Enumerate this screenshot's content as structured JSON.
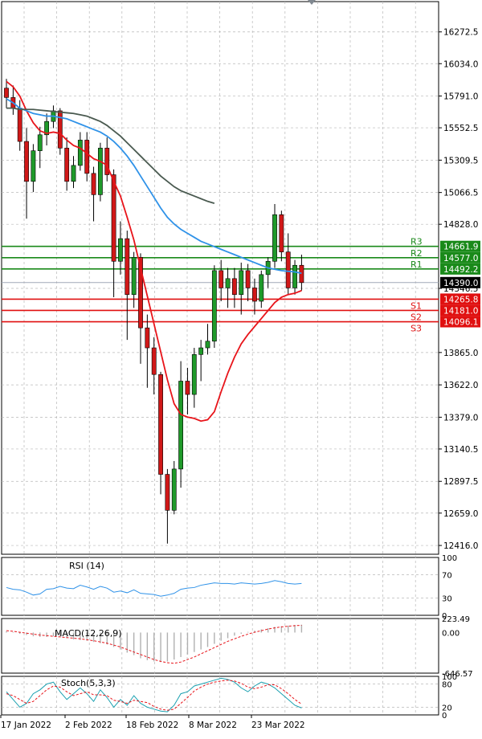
{
  "chart_data": {
    "type": "candlestick",
    "instrument_note": "",
    "x_labels": [
      "17 Jan 2022",
      "2 Feb 2022",
      "18 Feb 2022",
      "8 Mar 2022",
      "23 Mar 2022"
    ],
    "price_axis": {
      "ticks": [
        "16272.5",
        "16034.0",
        "15791.0",
        "15552.5",
        "15309.5",
        "15066.5",
        "14828.0",
        "14346.5",
        "13865.0",
        "13622.0",
        "13379.0",
        "13140.5",
        "12897.5",
        "12659.0",
        "12416.0"
      ],
      "tick_values": [
        16272.5,
        16034.0,
        15791.0,
        15552.5,
        15309.5,
        15066.5,
        14828.0,
        14346.5,
        13865.0,
        13622.0,
        13379.0,
        13140.5,
        12897.5,
        12659.0,
        12416.0
      ],
      "range": [
        12350,
        16500
      ]
    },
    "current_price": {
      "label": "14390.0",
      "value": 14390.0
    },
    "levels": [
      {
        "name": "R3",
        "label": "14661.9",
        "value": 14661.9,
        "kind": "resistance",
        "color": "#1a8a1a"
      },
      {
        "name": "R2",
        "label": "14577.0",
        "value": 14577.0,
        "kind": "resistance",
        "color": "#1a8a1a"
      },
      {
        "name": "R1",
        "label": "14492.2",
        "value": 14492.2,
        "kind": "resistance",
        "color": "#1a8a1a"
      },
      {
        "name": "S1",
        "label": "14265.8",
        "value": 14265.8,
        "kind": "support",
        "color": "#e01010"
      },
      {
        "name": "S2",
        "label": "14181.0",
        "value": 14181.0,
        "kind": "support",
        "color": "#e01010"
      },
      {
        "name": "S3",
        "label": "14096.1",
        "value": 14096.1,
        "kind": "support",
        "color": "#e01010"
      }
    ],
    "candles": [
      {
        "o": 15850,
        "h": 15920,
        "l": 15700,
        "c": 15780
      },
      {
        "o": 15780,
        "h": 15870,
        "l": 15650,
        "c": 15700
      },
      {
        "o": 15700,
        "h": 15760,
        "l": 15380,
        "c": 15450
      },
      {
        "o": 15450,
        "h": 15550,
        "l": 14870,
        "c": 15150
      },
      {
        "o": 15150,
        "h": 15430,
        "l": 15070,
        "c": 15380
      },
      {
        "o": 15380,
        "h": 15560,
        "l": 15250,
        "c": 15500
      },
      {
        "o": 15500,
        "h": 15660,
        "l": 15420,
        "c": 15600
      },
      {
        "o": 15600,
        "h": 15720,
        "l": 15550,
        "c": 15680
      },
      {
        "o": 15680,
        "h": 15700,
        "l": 15350,
        "c": 15400
      },
      {
        "o": 15400,
        "h": 15480,
        "l": 15080,
        "c": 15150
      },
      {
        "o": 15150,
        "h": 15340,
        "l": 15100,
        "c": 15270
      },
      {
        "o": 15270,
        "h": 15520,
        "l": 15230,
        "c": 15460
      },
      {
        "o": 15460,
        "h": 15520,
        "l": 15150,
        "c": 15210
      },
      {
        "o": 15210,
        "h": 15260,
        "l": 14850,
        "c": 15050
      },
      {
        "o": 15050,
        "h": 15440,
        "l": 15000,
        "c": 15400
      },
      {
        "o": 15400,
        "h": 15480,
        "l": 15150,
        "c": 15200
      },
      {
        "o": 15200,
        "h": 15240,
        "l": 14280,
        "c": 14550
      },
      {
        "o": 14550,
        "h": 14850,
        "l": 14450,
        "c": 14720
      },
      {
        "o": 14720,
        "h": 14780,
        "l": 13960,
        "c": 14300
      },
      {
        "o": 14300,
        "h": 14620,
        "l": 14200,
        "c": 14580
      },
      {
        "o": 14580,
        "h": 14610,
        "l": 13780,
        "c": 14050
      },
      {
        "o": 14050,
        "h": 14150,
        "l": 13600,
        "c": 13900
      },
      {
        "o": 13900,
        "h": 13980,
        "l": 13550,
        "c": 13700
      },
      {
        "o": 13700,
        "h": 13720,
        "l": 12800,
        "c": 12950
      },
      {
        "o": 12950,
        "h": 12990,
        "l": 12430,
        "c": 12680
      },
      {
        "o": 12680,
        "h": 13050,
        "l": 12650,
        "c": 12990
      },
      {
        "o": 12990,
        "h": 13800,
        "l": 12850,
        "c": 13650
      },
      {
        "o": 13650,
        "h": 13750,
        "l": 13400,
        "c": 13550
      },
      {
        "o": 13550,
        "h": 13900,
        "l": 13450,
        "c": 13850
      },
      {
        "o": 13850,
        "h": 13960,
        "l": 13650,
        "c": 13900
      },
      {
        "o": 13900,
        "h": 14080,
        "l": 13850,
        "c": 13950
      },
      {
        "o": 13950,
        "h": 14520,
        "l": 13900,
        "c": 14480
      },
      {
        "o": 14480,
        "h": 14560,
        "l": 14250,
        "c": 14350
      },
      {
        "o": 14350,
        "h": 14500,
        "l": 14200,
        "c": 14420
      },
      {
        "o": 14420,
        "h": 14500,
        "l": 14200,
        "c": 14300
      },
      {
        "o": 14300,
        "h": 14540,
        "l": 14150,
        "c": 14480
      },
      {
        "o": 14480,
        "h": 14530,
        "l": 14250,
        "c": 14350
      },
      {
        "o": 14350,
        "h": 14420,
        "l": 14150,
        "c": 14250
      },
      {
        "o": 14250,
        "h": 14480,
        "l": 14200,
        "c": 14450
      },
      {
        "o": 14450,
        "h": 14580,
        "l": 14350,
        "c": 14550
      },
      {
        "o": 14550,
        "h": 14980,
        "l": 14500,
        "c": 14900
      },
      {
        "o": 14900,
        "h": 14930,
        "l": 14550,
        "c": 14620
      },
      {
        "o": 14620,
        "h": 14760,
        "l": 14300,
        "c": 14350
      },
      {
        "o": 14350,
        "h": 14560,
        "l": 14300,
        "c": 14520
      },
      {
        "o": 14520,
        "h": 14600,
        "l": 14330,
        "c": 14390
      }
    ],
    "moving_averages": [
      {
        "color": "#e8141a",
        "values": [
          15900,
          15860,
          15790,
          15680,
          15590,
          15530,
          15510,
          15520,
          15510,
          15460,
          15420,
          15400,
          15360,
          15320,
          15300,
          15270,
          15150,
          15040,
          14880,
          14710,
          14500,
          14290,
          14080,
          13870,
          13660,
          13480,
          13400,
          13380,
          13370,
          13350,
          13360,
          13420,
          13570,
          13710,
          13830,
          13930,
          14000,
          14060,
          14120,
          14180,
          14240,
          14280,
          14300,
          14310,
          14330
        ]
      },
      {
        "color": "#2f92e8",
        "values": [
          15770,
          15740,
          15700,
          15680,
          15660,
          15650,
          15640,
          15640,
          15630,
          15620,
          15600,
          15580,
          15560,
          15540,
          15520,
          15490,
          15450,
          15400,
          15340,
          15270,
          15190,
          15110,
          15030,
          14950,
          14880,
          14830,
          14790,
          14760,
          14730,
          14700,
          14680,
          14660,
          14640,
          14620,
          14600,
          14580,
          14560,
          14540,
          14520,
          14500,
          14490,
          14480,
          14475,
          14470,
          14460
        ]
      },
      {
        "color": "#4a5a50",
        "values": [
          15700,
          15700,
          15690,
          15690,
          15690,
          15685,
          15680,
          15675,
          15670,
          15665,
          15660,
          15650,
          15640,
          15620,
          15600,
          15570,
          15530,
          15490,
          15440,
          15390,
          15340,
          15290,
          15240,
          15190,
          15150,
          15110,
          15080,
          15060,
          15040,
          15020,
          15000,
          14985
        ]
      }
    ],
    "rsi": {
      "label": "RSI (14)",
      "ticks": [
        "100",
        "70",
        "30",
        "0"
      ],
      "tick_values": [
        100,
        70,
        30,
        0
      ],
      "range": [
        0,
        100
      ],
      "values": [
        48,
        45,
        44,
        40,
        35,
        37,
        45,
        46,
        50,
        47,
        46,
        52,
        49,
        45,
        50,
        47,
        40,
        42,
        39,
        44,
        38,
        37,
        36,
        33,
        35,
        38,
        45,
        47,
        48,
        52,
        54,
        56,
        55,
        55,
        54,
        56,
        55,
        54,
        55,
        57,
        60,
        58,
        55,
        54,
        55
      ]
    },
    "macd": {
      "label": "MACD(12,26,9)",
      "ticks": [
        "223.49",
        "0.00",
        "-646.57"
      ],
      "tick_values": [
        223.49,
        0.0,
        -646.57
      ],
      "range": [
        -646.57,
        223.49
      ],
      "histogram": [
        20,
        10,
        -20,
        -40,
        -60,
        -70,
        -70,
        -60,
        -70,
        -90,
        -110,
        -120,
        -130,
        -150,
        -170,
        -190,
        -230,
        -270,
        -320,
        -360,
        -410,
        -440,
        -460,
        -470,
        -460,
        -430,
        -390,
        -350,
        -310,
        -270,
        -230,
        -180,
        -130,
        -90,
        -50,
        -20,
        10,
        30,
        50,
        70,
        90,
        100,
        110,
        120,
        125
      ],
      "signal": [
        30,
        20,
        5,
        -10,
        -25,
        -40,
        -50,
        -60,
        -70,
        -80,
        -90,
        -100,
        -115,
        -130,
        -150,
        -170,
        -200,
        -230,
        -270,
        -310,
        -350,
        -390,
        -430,
        -460,
        -480,
        -490,
        -470,
        -430,
        -390,
        -340,
        -290,
        -240,
        -190,
        -140,
        -100,
        -60,
        -25,
        5,
        30,
        55,
        75,
        90,
        100,
        110,
        115
      ]
    },
    "stoch": {
      "label": "Stoch(5,3,3)",
      "ticks": [
        "100",
        "80",
        "20",
        "0"
      ],
      "tick_values": [
        100,
        80,
        20,
        0
      ],
      "range": [
        0,
        100
      ],
      "k": [
        60,
        40,
        20,
        30,
        55,
        65,
        80,
        85,
        60,
        40,
        55,
        70,
        55,
        35,
        65,
        45,
        20,
        40,
        25,
        50,
        30,
        20,
        15,
        10,
        8,
        25,
        55,
        60,
        75,
        80,
        85,
        90,
        95,
        92,
        85,
        70,
        60,
        75,
        85,
        80,
        70,
        55,
        40,
        25,
        18
      ],
      "d": [
        55,
        50,
        40,
        30,
        35,
        50,
        65,
        75,
        72,
        60,
        50,
        55,
        60,
        52,
        52,
        50,
        38,
        35,
        30,
        38,
        35,
        32,
        22,
        15,
        12,
        15,
        30,
        45,
        62,
        72,
        80,
        85,
        88,
        90,
        88,
        82,
        72,
        68,
        72,
        78,
        78,
        68,
        55,
        40,
        28
      ]
    }
  }
}
